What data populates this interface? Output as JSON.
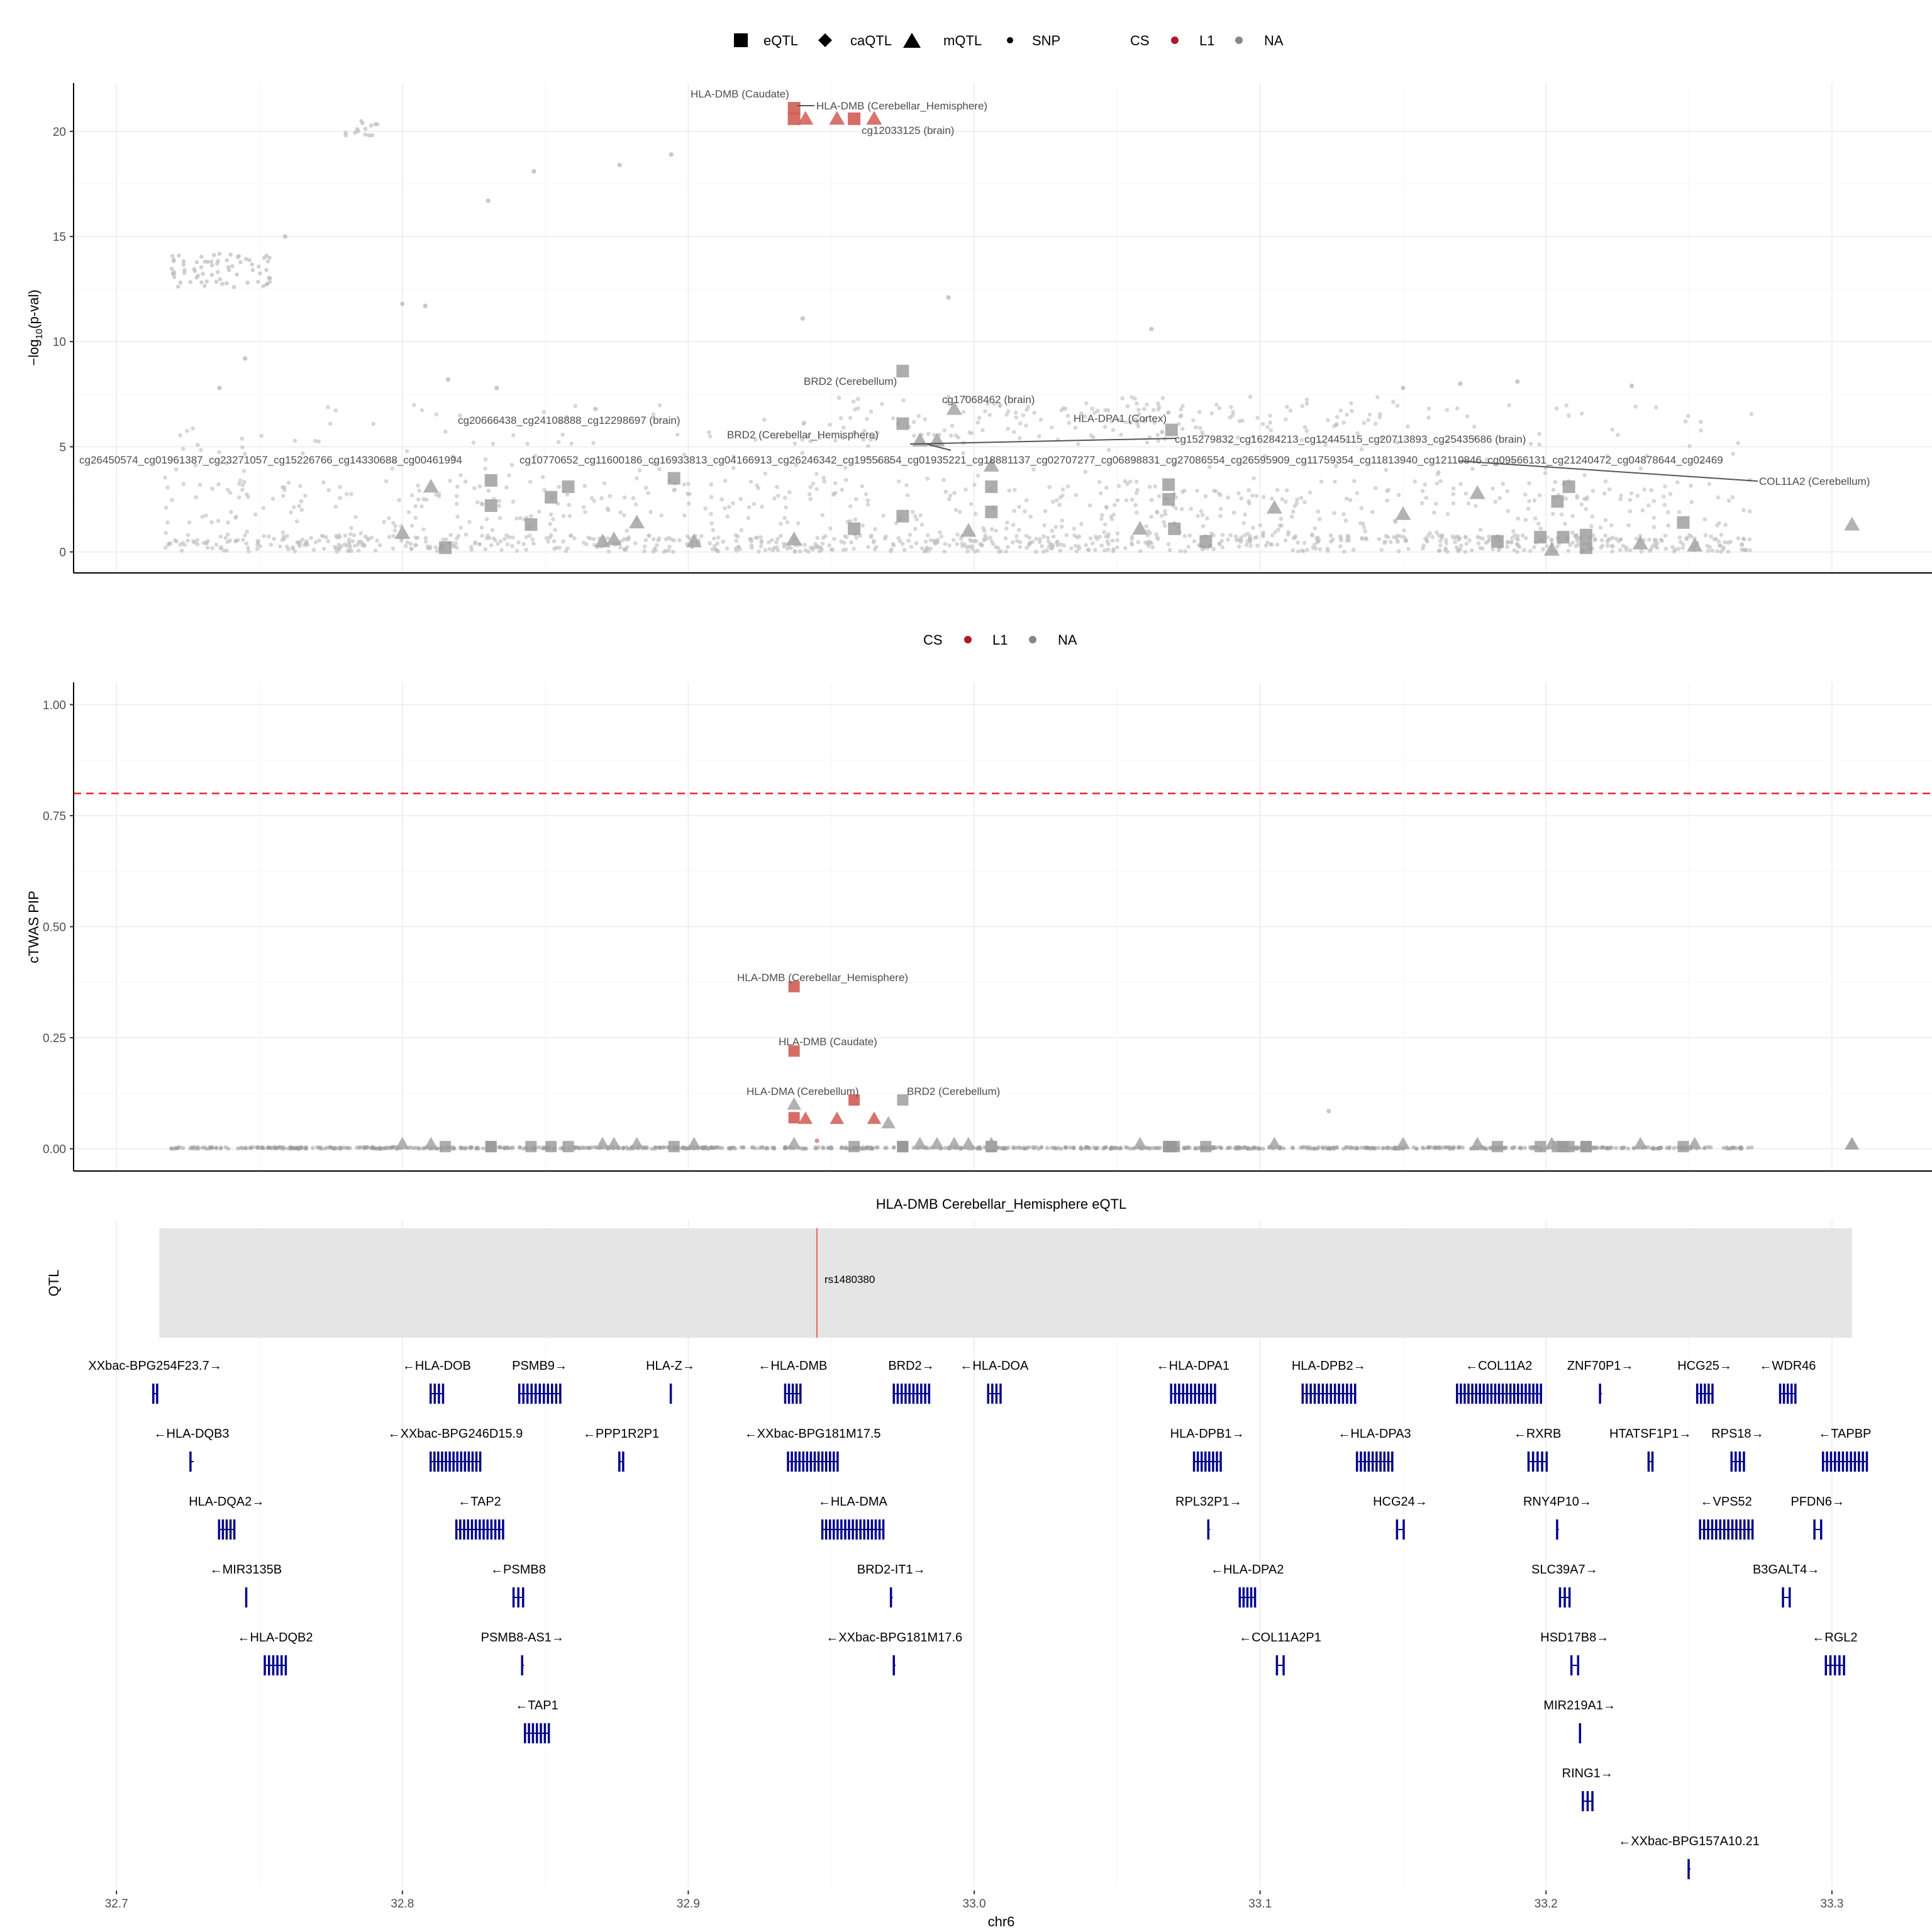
{
  "chart_data": [
    {
      "type": "scatter",
      "panel": "association",
      "ylabel": "−log10(p-val)",
      "ylabel_parts": {
        "prefix": "−log",
        "sub": "10",
        "suffix": "(p-val)"
      },
      "xlim": [
        32.685,
        33.335
      ],
      "ylim": [
        -1.0,
        22.3
      ],
      "yticks": [
        0,
        5,
        10,
        15,
        20
      ],
      "grid": true,
      "legend": {
        "position": "top",
        "shape_items": [
          {
            "label": "eQTL",
            "shape": "square"
          },
          {
            "label": "caQTL",
            "shape": "diamond"
          },
          {
            "label": "mQTL",
            "shape": "triangle"
          },
          {
            "label": "SNP",
            "shape": "dot"
          }
        ],
        "cs_title": "CS",
        "cs_items": [
          {
            "label": "L1",
            "color": "#b2182b"
          },
          {
            "label": "NA",
            "color": "#888888"
          }
        ]
      },
      "points": [
        {
          "x": 32.937,
          "y": 21.1,
          "shape": "square",
          "cs": "L1"
        },
        {
          "x": 32.937,
          "y": 20.6,
          "shape": "square",
          "cs": "L1"
        },
        {
          "x": 32.941,
          "y": 20.6,
          "shape": "triangle",
          "cs": "L1"
        },
        {
          "x": 32.952,
          "y": 20.6,
          "shape": "triangle",
          "cs": "L1"
        },
        {
          "x": 32.958,
          "y": 20.6,
          "shape": "square",
          "cs": "L1"
        },
        {
          "x": 32.965,
          "y": 20.6,
          "shape": "triangle",
          "cs": "L1"
        },
        {
          "x": 32.975,
          "y": 8.6,
          "shape": "square",
          "cs": "NA"
        },
        {
          "x": 32.975,
          "y": 6.1,
          "shape": "square",
          "cs": "NA"
        },
        {
          "x": 32.993,
          "y": 6.8,
          "shape": "triangle",
          "cs": "NA"
        },
        {
          "x": 32.981,
          "y": 5.3,
          "shape": "triangle",
          "cs": "NA"
        },
        {
          "x": 32.987,
          "y": 5.3,
          "shape": "triangle",
          "cs": "NA"
        },
        {
          "x": 33.069,
          "y": 5.8,
          "shape": "square",
          "cs": "NA"
        },
        {
          "x": 33.176,
          "y": 2.8,
          "shape": "triangle",
          "cs": "NA"
        },
        {
          "x": 33.307,
          "y": 1.3,
          "shape": "triangle",
          "cs": "NA"
        },
        {
          "x": 32.852,
          "y": 2.6,
          "shape": "square",
          "cs": "NA"
        },
        {
          "x": 32.858,
          "y": 3.1,
          "shape": "square",
          "cs": "NA"
        },
        {
          "x": 32.831,
          "y": 3.4,
          "shape": "square",
          "cs": "NA"
        },
        {
          "x": 32.831,
          "y": 2.2,
          "shape": "square",
          "cs": "NA"
        },
        {
          "x": 32.845,
          "y": 1.3,
          "shape": "square",
          "cs": "NA"
        },
        {
          "x": 32.815,
          "y": 0.2,
          "shape": "square",
          "cs": "NA"
        },
        {
          "x": 32.8,
          "y": 0.9,
          "shape": "triangle",
          "cs": "NA"
        },
        {
          "x": 32.81,
          "y": 3.1,
          "shape": "triangle",
          "cs": "NA"
        },
        {
          "x": 32.882,
          "y": 1.4,
          "shape": "triangle",
          "cs": "NA"
        },
        {
          "x": 32.874,
          "y": 0.6,
          "shape": "triangle",
          "cs": "NA"
        },
        {
          "x": 32.895,
          "y": 3.5,
          "shape": "square",
          "cs": "NA"
        },
        {
          "x": 32.937,
          "y": 0.6,
          "shape": "triangle",
          "cs": "NA"
        },
        {
          "x": 32.958,
          "y": 1.1,
          "shape": "square",
          "cs": "NA"
        },
        {
          "x": 32.975,
          "y": 1.7,
          "shape": "square",
          "cs": "NA"
        },
        {
          "x": 33.006,
          "y": 1.9,
          "shape": "square",
          "cs": "NA"
        },
        {
          "x": 33.006,
          "y": 3.1,
          "shape": "square",
          "cs": "NA"
        },
        {
          "x": 33.006,
          "y": 4.1,
          "shape": "triangle",
          "cs": "NA"
        },
        {
          "x": 32.998,
          "y": 1.0,
          "shape": "triangle",
          "cs": "NA"
        },
        {
          "x": 33.068,
          "y": 3.2,
          "shape": "square",
          "cs": "NA"
        },
        {
          "x": 33.068,
          "y": 2.5,
          "shape": "square",
          "cs": "NA"
        },
        {
          "x": 33.07,
          "y": 1.1,
          "shape": "square",
          "cs": "NA"
        },
        {
          "x": 33.081,
          "y": 0.5,
          "shape": "square",
          "cs": "NA"
        },
        {
          "x": 33.058,
          "y": 1.1,
          "shape": "triangle",
          "cs": "NA"
        },
        {
          "x": 33.105,
          "y": 2.1,
          "shape": "triangle",
          "cs": "NA"
        },
        {
          "x": 33.15,
          "y": 1.8,
          "shape": "triangle",
          "cs": "NA"
        },
        {
          "x": 33.183,
          "y": 0.5,
          "shape": "square",
          "cs": "NA"
        },
        {
          "x": 33.204,
          "y": 2.4,
          "shape": "square",
          "cs": "NA"
        },
        {
          "x": 33.208,
          "y": 3.1,
          "shape": "square",
          "cs": "NA"
        },
        {
          "x": 33.198,
          "y": 0.7,
          "shape": "square",
          "cs": "NA"
        },
        {
          "x": 33.206,
          "y": 0.7,
          "shape": "square",
          "cs": "NA"
        },
        {
          "x": 33.214,
          "y": 0.8,
          "shape": "square",
          "cs": "NA"
        },
        {
          "x": 33.214,
          "y": 0.2,
          "shape": "square",
          "cs": "NA"
        },
        {
          "x": 33.202,
          "y": 0.1,
          "shape": "triangle",
          "cs": "NA"
        },
        {
          "x": 33.248,
          "y": 1.4,
          "shape": "square",
          "cs": "NA"
        },
        {
          "x": 33.233,
          "y": 0.4,
          "shape": "triangle",
          "cs": "NA"
        },
        {
          "x": 33.252,
          "y": 0.3,
          "shape": "triangle",
          "cs": "NA"
        },
        {
          "x": 32.87,
          "y": 0.5,
          "shape": "triangle",
          "cs": "NA"
        },
        {
          "x": 32.902,
          "y": 0.5,
          "shape": "triangle",
          "cs": "NA"
        },
        {
          "x": 32.94,
          "y": 11.1,
          "shape": "dot",
          "cs": "NA"
        },
        {
          "x": 32.759,
          "y": 15.0,
          "shape": "dot",
          "cs": "NA"
        },
        {
          "x": 32.991,
          "y": 12.1,
          "shape": "dot",
          "cs": "NA"
        },
        {
          "x": 33.062,
          "y": 10.6,
          "shape": "dot",
          "cs": "NA"
        },
        {
          "x": 32.894,
          "y": 18.9,
          "shape": "dot",
          "cs": "NA"
        },
        {
          "x": 32.876,
          "y": 18.4,
          "shape": "dot",
          "cs": "NA"
        },
        {
          "x": 32.83,
          "y": 16.7,
          "shape": "dot",
          "cs": "NA"
        },
        {
          "x": 32.846,
          "y": 18.1,
          "shape": "dot",
          "cs": "NA"
        },
        {
          "x": 32.8,
          "y": 11.8,
          "shape": "dot",
          "cs": "NA"
        },
        {
          "x": 32.808,
          "y": 11.7,
          "shape": "dot",
          "cs": "NA"
        },
        {
          "x": 32.816,
          "y": 8.2,
          "shape": "dot",
          "cs": "NA"
        },
        {
          "x": 32.833,
          "y": 7.8,
          "shape": "dot",
          "cs": "NA"
        },
        {
          "x": 32.745,
          "y": 9.2,
          "shape": "dot",
          "cs": "NA"
        },
        {
          "x": 32.736,
          "y": 7.8,
          "shape": "dot",
          "cs": "NA"
        },
        {
          "x": 33.23,
          "y": 7.9,
          "shape": "dot",
          "cs": "NA"
        },
        {
          "x": 33.17,
          "y": 8.0,
          "shape": "dot",
          "cs": "NA"
        },
        {
          "x": 33.19,
          "y": 8.1,
          "shape": "dot",
          "cs": "NA"
        },
        {
          "x": 33.15,
          "y": 7.8,
          "shape": "dot",
          "cs": "NA"
        }
      ],
      "annotations": [
        "HLA-DMB (Caudate)",
        "HLA-DMB (Cerebellar_Hemisphere)",
        "cg12033125 (brain)",
        "BRD2 (Cerebellum)",
        "cg17068462 (brain)",
        "HLA-DPA1 (Cortex)",
        "BRD2 (Cerebellar_Hemisphere)",
        "cg20666438_cg24108888_cg12298697 (brain)",
        "cg15279832_cg16284213_cg12445115_cg20713893_cg25435686 (brain)",
        "cg26450574_cg01961387_cg23271057_cg15226766_cg14330688_cg00461994",
        "cg10770652_cg11600186_cg16933813_cg04166913_cg26246342_cg19556854_cg01935221_cg18881137_cg02707277_cg06898831_cg27086554_cg26595909_cg11759354_cg11813940_cg12110846_cg09566131_cg21240472_cg04878644_cg02469",
        "COL11A2 (Cerebellum)"
      ]
    },
    {
      "type": "scatter",
      "panel": "pip",
      "ylabel": "cTWAS PIP",
      "xlim": [
        32.685,
        33.335
      ],
      "ylim": [
        -0.05,
        1.05
      ],
      "yticks": [
        0.0,
        0.25,
        0.5,
        0.75,
        1.0
      ],
      "ytick_labels": [
        "0.00",
        "0.25",
        "0.50",
        "0.75",
        "1.00"
      ],
      "threshold": 0.8,
      "grid": true,
      "legend": {
        "position": "top",
        "cs_title": "CS",
        "cs_items": [
          {
            "label": "L1",
            "color": "#b2182b"
          },
          {
            "label": "NA",
            "color": "#888888"
          }
        ]
      },
      "points": [
        {
          "x": 32.937,
          "y": 0.365,
          "shape": "square",
          "cs": "L1"
        },
        {
          "x": 32.937,
          "y": 0.22,
          "shape": "square",
          "cs": "L1"
        },
        {
          "x": 32.958,
          "y": 0.11,
          "shape": "square",
          "cs": "L1"
        },
        {
          "x": 32.937,
          "y": 0.07,
          "shape": "square",
          "cs": "L1"
        },
        {
          "x": 32.941,
          "y": 0.068,
          "shape": "triangle",
          "cs": "L1"
        },
        {
          "x": 32.952,
          "y": 0.068,
          "shape": "triangle",
          "cs": "L1"
        },
        {
          "x": 32.965,
          "y": 0.068,
          "shape": "triangle",
          "cs": "L1"
        },
        {
          "x": 32.945,
          "y": 0.018,
          "shape": "dot",
          "cs": "L1"
        },
        {
          "x": 32.937,
          "y": 0.1,
          "shape": "triangle",
          "cs": "NA"
        },
        {
          "x": 32.975,
          "y": 0.11,
          "shape": "square",
          "cs": "NA"
        },
        {
          "x": 32.97,
          "y": 0.058,
          "shape": "triangle",
          "cs": "NA"
        },
        {
          "x": 33.124,
          "y": 0.085,
          "shape": "dot",
          "cs": "NA"
        },
        {
          "x": 33.307,
          "y": 0.01,
          "shape": "triangle",
          "cs": "NA"
        }
      ],
      "annotations": [
        "HLA-DMB (Cerebellar_Hemisphere)",
        "HLA-DMB (Caudate)",
        "HLA-DMA (Cerebellum)",
        "BRD2 (Cerebellum)"
      ]
    },
    {
      "type": "gene_track",
      "panel": "genes",
      "title": "HLA-DMB Cerebellar_Hemisphere eQTL",
      "qtl_label": "QTL",
      "qtl_region": [
        32.715,
        33.307
      ],
      "qtl_snp": {
        "id": "rs1480380",
        "x": 32.945
      },
      "xlabel": "chr6",
      "xticks": [
        32.7,
        32.8,
        32.9,
        33.0,
        33.1,
        33.2,
        33.3
      ],
      "genes": [
        {
          "label": "XXbac-BPG254F23.7→",
          "start": 32.7125,
          "end": 32.7145,
          "row": 0
        },
        {
          "label": "←HLA-DQB3",
          "start": 32.7255,
          "end": 32.727,
          "row": 1
        },
        {
          "label": "HLA-DQA2→",
          "start": 32.7355,
          "end": 32.7415,
          "row": 2
        },
        {
          "label": "←MIR3135B",
          "start": 32.745,
          "end": 32.7455,
          "row": 3
        },
        {
          "label": "←HLA-DQB2",
          "start": 32.7515,
          "end": 32.7595,
          "row": 4
        },
        {
          "label": "←HLA-DOB",
          "start": 32.8095,
          "end": 32.8145,
          "row": 0
        },
        {
          "label": "←XXbac-BPG246D15.9",
          "start": 32.8095,
          "end": 32.8275,
          "row": 1
        },
        {
          "label": "←TAP2",
          "start": 32.8185,
          "end": 32.8355,
          "row": 2
        },
        {
          "label": "←PSMB8",
          "start": 32.8385,
          "end": 32.8425,
          "row": 3
        },
        {
          "label": "PSMB8-AS1→",
          "start": 32.8415,
          "end": 32.8425,
          "row": 4
        },
        {
          "label": "←TAP1",
          "start": 32.8425,
          "end": 32.8515,
          "row": 5
        },
        {
          "label": "PSMB9→",
          "start": 32.8405,
          "end": 32.8555,
          "row": 0
        },
        {
          "label": "←PPP1R2P1",
          "start": 32.8755,
          "end": 32.8775,
          "row": 1
        },
        {
          "label": "HLA-Z→",
          "start": 32.8935,
          "end": 32.894,
          "row": 0
        },
        {
          "label": "←HLA-DMB",
          "start": 32.9335,
          "end": 32.9395,
          "row": 0
        },
        {
          "label": "←XXbac-BPG181M17.5",
          "start": 32.9345,
          "end": 32.9525,
          "row": 1
        },
        {
          "label": "←HLA-DMA",
          "start": 32.9465,
          "end": 32.9685,
          "row": 2
        },
        {
          "label": "BRD2-IT1→",
          "start": 32.9705,
          "end": 32.9715,
          "row": 3
        },
        {
          "label": "←XXbac-BPG181M17.6",
          "start": 32.9715,
          "end": 32.9725,
          "row": 4
        },
        {
          "label": "BRD2→",
          "start": 32.9715,
          "end": 32.9845,
          "row": 0
        },
        {
          "label": "←HLA-DOA",
          "start": 33.0045,
          "end": 33.0095,
          "row": 0
        },
        {
          "label": "←HLA-DPA1",
          "start": 33.0685,
          "end": 33.0845,
          "row": 0
        },
        {
          "label": "HLA-DPB1→",
          "start": 33.0765,
          "end": 33.0865,
          "row": 1
        },
        {
          "label": "RPL32P1→",
          "start": 33.0815,
          "end": 33.0825,
          "row": 2
        },
        {
          "label": "←HLA-DPA2",
          "start": 33.0925,
          "end": 33.0985,
          "row": 3
        },
        {
          "label": "←COL11A2P1",
          "start": 33.1055,
          "end": 33.1085,
          "row": 4
        },
        {
          "label": "HLA-DPB2→",
          "start": 33.1145,
          "end": 33.1335,
          "row": 0
        },
        {
          "label": "←HLA-DPA3",
          "start": 33.1335,
          "end": 33.1465,
          "row": 1
        },
        {
          "label": "HCG24→",
          "start": 33.1475,
          "end": 33.1505,
          "row": 2
        },
        {
          "label": "←COL11A2",
          "start": 33.1685,
          "end": 33.1985,
          "row": 0
        },
        {
          "label": "←RXRB",
          "start": 33.1935,
          "end": 33.2005,
          "row": 1
        },
        {
          "label": "RNY4P10→",
          "start": 33.2035,
          "end": 33.2045,
          "row": 2
        },
        {
          "label": "SLC39A7→",
          "start": 33.2045,
          "end": 33.2085,
          "row": 3
        },
        {
          "label": "HSD17B8→",
          "start": 33.2085,
          "end": 33.2115,
          "row": 4
        },
        {
          "label": "MIR219A1→",
          "start": 33.2115,
          "end": 33.212,
          "row": 5
        },
        {
          "label": "RING1→",
          "start": 33.2125,
          "end": 33.2165,
          "row": 6
        },
        {
          "label": "←XXbac-BPG157A10.21",
          "start": 33.2495,
          "end": 33.2505,
          "row": 7
        },
        {
          "label": "ZNF70P1→",
          "start": 33.2185,
          "end": 33.2195,
          "row": 0
        },
        {
          "label": "HTATSF1P1→",
          "start": 33.2355,
          "end": 33.2375,
          "row": 1
        },
        {
          "label": "HCG25→",
          "start": 33.2525,
          "end": 33.2585,
          "row": 0
        },
        {
          "label": "←VPS52",
          "start": 33.2535,
          "end": 33.2725,
          "row": 2
        },
        {
          "label": "RPS18→",
          "start": 33.2645,
          "end": 33.2695,
          "row": 1
        },
        {
          "label": "←WDR46",
          "start": 33.2815,
          "end": 33.2875,
          "row": 0
        },
        {
          "label": "B3GALT4→",
          "start": 33.2825,
          "end": 33.2855,
          "row": 3
        },
        {
          "label": "PFDN6→",
          "start": 33.2935,
          "end": 33.2965,
          "row": 2
        },
        {
          "label": "←TAPBP",
          "start": 33.2965,
          "end": 33.3125,
          "row": 1
        },
        {
          "label": "←RGL2",
          "start": 33.2975,
          "end": 33.3045,
          "row": 4
        }
      ]
    }
  ]
}
